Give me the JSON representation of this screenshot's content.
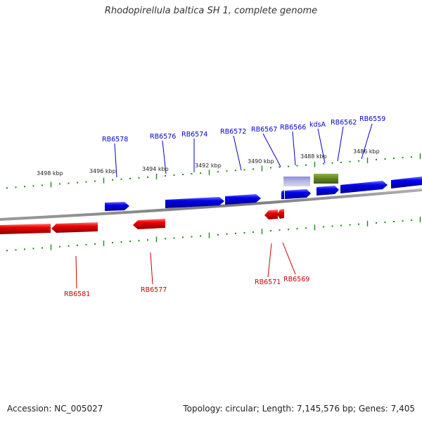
{
  "header": {
    "title": "Rhodopirellula baltica SH 1, complete genome"
  },
  "footer": {
    "accession": "Accession: NC_005027",
    "summary": "Topology: circular; Length: 7,145,576 bp; Genes: 7,405"
  },
  "colors": {
    "forward_gene": "#0000ee",
    "reverse_gene": "#ee0000",
    "rna_gene": "#7b7bc4",
    "kdsA_gene": "#6b8e23",
    "backbone": "#808080",
    "tick": "#1a8a1a",
    "forward_label": "#0000cc",
    "reverse_label": "#cc0000"
  },
  "map": {
    "scale_labels": [
      "3498 kbp",
      "3496 kbp",
      "3494 kbp",
      "3492 kbp",
      "3490 kbp",
      "3488 kbp",
      "3486 kbp"
    ],
    "forward_labels": [
      "RB6578",
      "RB6576",
      "RB6574",
      "RB6572",
      "RB6567",
      "RB6566",
      "kdsA",
      "RB6562",
      "RB6559"
    ],
    "reverse_labels": [
      "RB6581",
      "RB6577",
      "RB6571",
      "RB6569"
    ]
  }
}
